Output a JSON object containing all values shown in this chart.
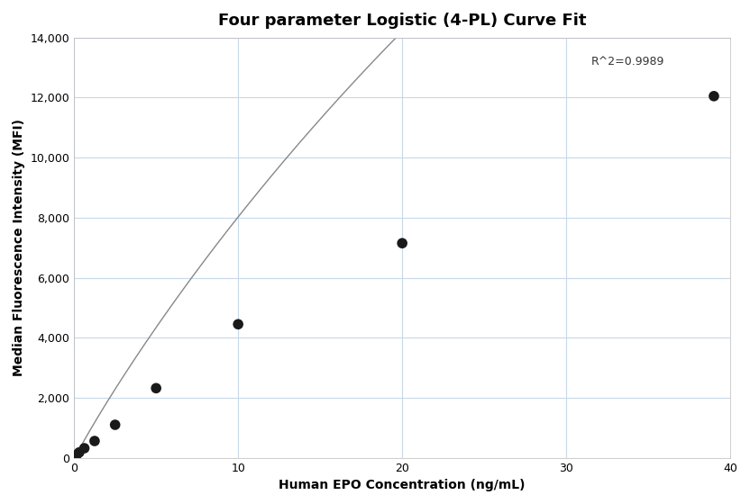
{
  "title": "Four parameter Logistic (4-PL) Curve Fit",
  "xlabel": "Human EPO Concentration (ng/mL)",
  "ylabel": "Median Fluorescence Intensity (MFI)",
  "scatter_x": [
    0.078,
    0.156,
    0.313,
    0.625,
    1.25,
    2.5,
    5.0,
    10.0,
    20.0,
    39.0
  ],
  "scatter_y": [
    50,
    100,
    180,
    320,
    560,
    1100,
    2320,
    4450,
    7150,
    12050
  ],
  "xlim": [
    0,
    40
  ],
  "ylim": [
    0,
    14000
  ],
  "yticks": [
    0,
    2000,
    4000,
    6000,
    8000,
    10000,
    12000,
    14000
  ],
  "xticks": [
    0,
    10,
    20,
    30,
    40
  ],
  "r_squared": "R^2=0.9989",
  "r2_x": 31.5,
  "r2_y": 13100,
  "scatter_color": "#1a1a1a",
  "scatter_size": 70,
  "line_color": "#888888",
  "background_color": "#ffffff",
  "grid_color": "#c8d8e8",
  "title_fontsize": 13,
  "label_fontsize": 10,
  "4pl_A": -50,
  "4pl_B": 0.95,
  "4pl_C": 100,
  "4pl_D": 80000
}
